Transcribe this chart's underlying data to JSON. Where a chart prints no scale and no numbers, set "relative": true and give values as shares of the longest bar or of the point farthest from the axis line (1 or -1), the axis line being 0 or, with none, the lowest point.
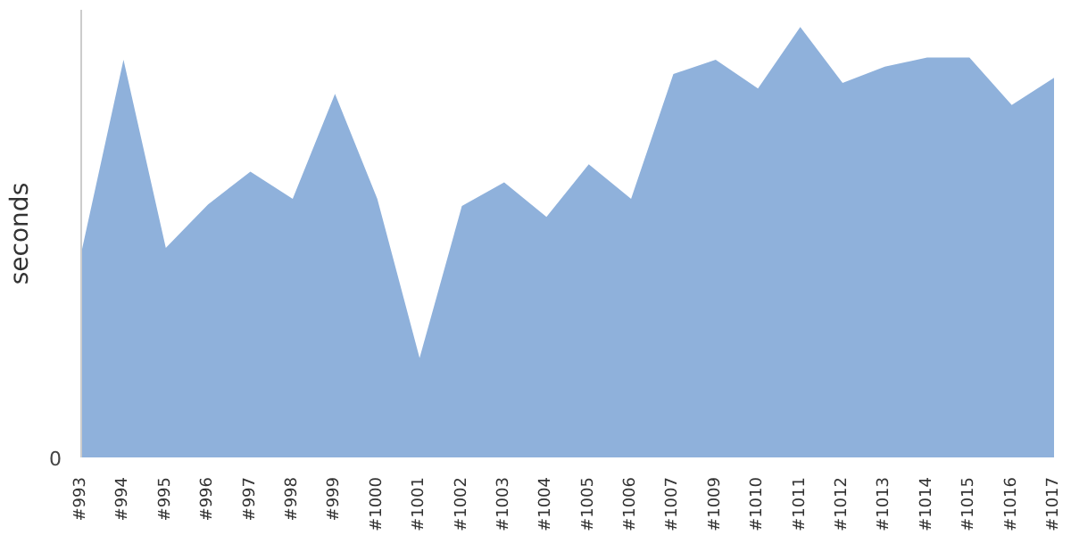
{
  "chart_data": {
    "type": "area",
    "ylabel": "seconds",
    "relative": true,
    "annotations": [
      "0"
    ],
    "categories": [
      "#993",
      "#994",
      "#995",
      "#996",
      "#997",
      "#998",
      "#999",
      "#1000",
      "#1001",
      "#1002",
      "#1003",
      "#1004",
      "#1005",
      "#1006",
      "#1007",
      "#1009",
      "#1010",
      "#1011",
      "#1012",
      "#1013",
      "#1014",
      "#1015",
      "#1016",
      "#1017"
    ],
    "series": [
      {
        "color": "#8fb1db",
        "values": [
          0.475,
          0.924,
          0.487,
          0.588,
          0.664,
          0.601,
          0.845,
          0.601,
          0.231,
          0.584,
          0.639,
          0.559,
          0.681,
          0.601,
          0.891,
          0.924,
          0.857,
          1,
          0.87,
          0.908,
          0.929,
          0.929,
          0.819,
          0.882
        ]
      }
    ],
    "marker": "none"
  }
}
